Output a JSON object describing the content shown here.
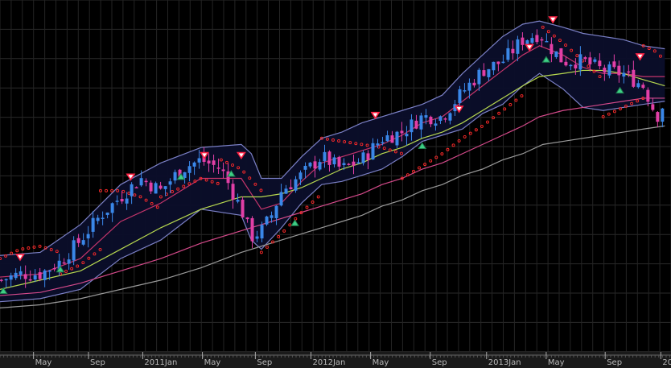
{
  "chart_data": {
    "type": "candlestick",
    "title": "",
    "xlabel": "",
    "ylabel": "",
    "xlim": [
      0,
      100
    ],
    "ylim": [
      0,
      100
    ],
    "grid": true,
    "x_tick_labels": [
      {
        "label": "May",
        "x": 5
      },
      {
        "label": "Sep",
        "x": 13.2
      },
      {
        "label": "2011Jan",
        "x": 21.3
      },
      {
        "label": "May",
        "x": 30.2
      },
      {
        "label": "Sep",
        "x": 38.1
      },
      {
        "label": "2012Jan",
        "x": 46.4
      },
      {
        "label": "May",
        "x": 55.3
      },
      {
        "label": "Sep",
        "x": 64.2
      },
      {
        "label": "2013Jan",
        "x": 72.6
      },
      {
        "label": "May",
        "x": 81.5
      },
      {
        "label": "Sep",
        "x": 90.3
      },
      {
        "label": "20",
        "x": 98.6
      }
    ],
    "price": {
      "x": [
        0,
        3,
        6,
        9,
        12,
        15,
        18,
        21,
        24,
        27,
        30,
        33,
        36,
        37.5,
        39,
        40.5,
        42,
        45,
        48,
        51,
        54,
        57,
        60,
        63,
        66,
        69,
        72,
        75,
        78,
        80.5,
        81.5,
        84,
        87,
        90,
        93,
        96,
        98,
        99.2
      ],
      "y": [
        17,
        19,
        19,
        23,
        30,
        38,
        44,
        50,
        46,
        53,
        56,
        53,
        40,
        31,
        33,
        38,
        46,
        51,
        57,
        53,
        56,
        63,
        65,
        70,
        70,
        78,
        85,
        88,
        95,
        97,
        94,
        88,
        88,
        85,
        84,
        80,
        70,
        75
      ],
      "colors": {
        "up": "#3a87e8",
        "down": "#e23fa6"
      }
    },
    "series": [
      {
        "role": "bollinger-upper",
        "color": "#7b80c6",
        "x": [
          0,
          6,
          12,
          18,
          24,
          30,
          36,
          37.5,
          39,
          42,
          45,
          48,
          51,
          54,
          57,
          60,
          63,
          66,
          69,
          72,
          75,
          78,
          80.5,
          84,
          87,
          90,
          93,
          96,
          99.2
        ],
        "values": [
          25,
          26,
          35,
          48,
          55,
          60,
          61,
          58,
          50,
          50,
          57,
          63,
          65,
          68,
          70,
          72,
          74,
          77,
          84,
          90,
          96,
          100,
          101,
          99,
          97,
          96,
          95,
          93,
          92
        ]
      },
      {
        "role": "bollinger-lower",
        "color": "#7b80c6",
        "x": [
          0,
          6,
          12,
          18,
          24,
          30,
          36,
          37.5,
          39,
          42,
          45,
          48,
          51,
          54,
          57,
          60,
          63,
          66,
          69,
          72,
          75,
          78,
          80.5,
          84,
          87,
          90,
          93,
          96,
          99.2
        ],
        "values": [
          10,
          11,
          14,
          24,
          30,
          40,
          38,
          30,
          27,
          34,
          42,
          48,
          49,
          51,
          53,
          57,
          62,
          64,
          66,
          71,
          74,
          80,
          84,
          79,
          73,
          72,
          73,
          74,
          75
        ]
      },
      {
        "role": "bollinger-middle",
        "color": "#c4356b",
        "x": [
          0,
          6,
          12,
          18,
          24,
          30,
          36,
          39,
          42,
          45,
          48,
          51,
          54,
          57,
          60,
          63,
          66,
          69,
          72,
          75,
          78,
          80.5,
          84,
          87,
          90,
          93,
          96,
          99.2
        ],
        "values": [
          18,
          19,
          24,
          36,
          42,
          50,
          50,
          40,
          42,
          49,
          55,
          57,
          59,
          61,
          64,
          68,
          70,
          75,
          80,
          85,
          90,
          93,
          90,
          86,
          84,
          84,
          83,
          83
        ]
      },
      {
        "role": "moving-average-medium",
        "color": "#b7d84f",
        "x": [
          0,
          6,
          12,
          18,
          24,
          30,
          36,
          39,
          42,
          45,
          48,
          51,
          54,
          57,
          60,
          63,
          66,
          69,
          72,
          75,
          78,
          80.5,
          84,
          87,
          90,
          93,
          96,
          99.2
        ],
        "values": [
          14,
          17,
          20,
          27,
          34,
          40,
          44,
          44,
          45,
          47,
          50,
          53,
          55,
          58,
          60,
          63,
          65,
          68,
          72,
          76,
          80,
          83,
          84,
          85,
          85,
          84,
          82,
          80
        ]
      },
      {
        "role": "moving-average-long",
        "color": "#d54a8b",
        "x": [
          0,
          6,
          12,
          18,
          24,
          30,
          36,
          39,
          42,
          45,
          48,
          51,
          54,
          57,
          60,
          63,
          66,
          69,
          72,
          75,
          78,
          80.5,
          84,
          87,
          90,
          93,
          96,
          99.2
        ],
        "values": [
          12,
          13,
          16,
          20,
          24,
          29,
          33,
          35,
          37,
          39,
          41,
          43,
          45,
          48,
          50,
          53,
          55,
          58,
          61,
          64,
          67,
          70,
          72,
          73,
          74,
          75,
          76,
          76
        ]
      },
      {
        "role": "moving-average-very-long",
        "color": "#9a9a9a",
        "x": [
          0,
          6,
          12,
          18,
          24,
          30,
          36,
          39,
          42,
          45,
          48,
          51,
          54,
          57,
          60,
          63,
          66,
          69,
          72,
          75,
          78,
          81,
          84,
          87,
          90,
          93,
          96,
          99.2
        ],
        "values": [
          8,
          9,
          11,
          14,
          17,
          21,
          26,
          28,
          30,
          32,
          34,
          36,
          38,
          41,
          43,
          46,
          48,
          51,
          53,
          56,
          58,
          61,
          62,
          63,
          64,
          65,
          66,
          67
        ]
      }
    ],
    "parabolic_sar": {
      "color": "#ff2a2a",
      "segments": [
        {
          "x": [
            0,
            3,
            6,
            9
          ],
          "y": [
            24,
            27,
            28,
            26
          ]
        },
        {
          "x": [
            9,
            12,
            15
          ],
          "y": [
            19,
            22,
            27
          ]
        },
        {
          "x": [
            15,
            18,
            21,
            24
          ],
          "y": [
            46,
            46,
            44,
            40
          ]
        },
        {
          "x": [
            24,
            27,
            30,
            33
          ],
          "y": [
            44,
            47,
            50,
            48
          ]
        },
        {
          "x": [
            33,
            36,
            39
          ],
          "y": [
            56,
            53,
            46
          ]
        },
        {
          "x": [
            39,
            42,
            45,
            48
          ],
          "y": [
            26,
            32,
            39,
            45
          ]
        },
        {
          "x": [
            48,
            51,
            54,
            57,
            60
          ],
          "y": [
            63,
            62,
            61,
            60,
            58
          ]
        },
        {
          "x": [
            60,
            63,
            66,
            69,
            72,
            75,
            78
          ],
          "y": [
            50,
            54,
            58,
            63,
            67,
            72,
            77
          ]
        },
        {
          "x": [
            81,
            84,
            87,
            90
          ],
          "y": [
            99,
            94,
            88,
            82
          ]
        },
        {
          "x": [
            90,
            93,
            96
          ],
          "y": [
            70,
            73,
            76
          ]
        },
        {
          "x": [
            96,
            98,
            99.2
          ],
          "y": [
            93,
            91,
            88
          ]
        }
      ]
    },
    "signals": [
      {
        "kind": "sell",
        "x": 3,
        "y": 23
      },
      {
        "kind": "buy",
        "x": 0.5,
        "y": 15
      },
      {
        "kind": "buy",
        "x": 9,
        "y": 22
      },
      {
        "kind": "sell",
        "x": 19.5,
        "y": 49
      },
      {
        "kind": "buy",
        "x": 27,
        "y": 52
      },
      {
        "kind": "sell",
        "x": 30.5,
        "y": 56
      },
      {
        "kind": "buy",
        "x": 34.5,
        "y": 53
      },
      {
        "kind": "sell",
        "x": 36,
        "y": 56
      },
      {
        "kind": "buy",
        "x": 44,
        "y": 37
      },
      {
        "kind": "sell",
        "x": 56,
        "y": 69
      },
      {
        "kind": "buy",
        "x": 63,
        "y": 62
      },
      {
        "kind": "sell",
        "x": 68.5,
        "y": 71
      },
      {
        "kind": "sell",
        "x": 79,
        "y": 91
      },
      {
        "kind": "buy",
        "x": 81.5,
        "y": 90
      },
      {
        "kind": "sell",
        "x": 82.5,
        "y": 100
      },
      {
        "kind": "buy",
        "x": 92.5,
        "y": 80
      },
      {
        "kind": "sell",
        "x": 95.5,
        "y": 88
      }
    ]
  }
}
